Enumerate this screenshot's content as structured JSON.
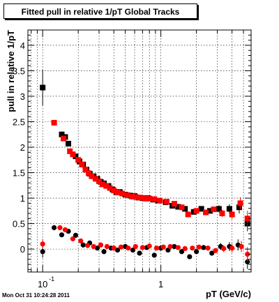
{
  "title": "Fitted pull in relative 1/pT  Global Tracks",
  "footer": "Mon Oct 31 10:24:28 2011",
  "chart_data": {
    "type": "scatter",
    "title": "Fitted pull in relative 1/pT  Global Tracks",
    "xlabel": "pT (GeV/c)",
    "ylabel": "pull in relative 1/pT",
    "xscale": "log",
    "xlim": [
      0.075,
      5.8
    ],
    "ylim": [
      -0.45,
      4.3
    ],
    "x_ticklabels": [
      "10",
      "1"
    ],
    "x_ticklabel_exponents": [
      "-1",
      ""
    ],
    "y_ticks": [
      0,
      0.5,
      1,
      1.5,
      2,
      2.5,
      3,
      3.5,
      4
    ],
    "y_ticklabels": [
      "0",
      "0.5",
      "1",
      "1.5",
      "2",
      "2.5",
      "3",
      "3.5",
      "4"
    ],
    "grid": true,
    "colors": {
      "black_series": "#000000",
      "red_series": "#ff0000"
    },
    "series": [
      {
        "marker": "square",
        "color": "#000000",
        "x": [
          0.1,
          0.145,
          0.155,
          0.165,
          0.19,
          0.205,
          0.22,
          0.235,
          0.25,
          0.27,
          0.29,
          0.31,
          0.33,
          0.36,
          0.39,
          0.42,
          0.45,
          0.5,
          0.55,
          0.6,
          0.65,
          0.7,
          0.78,
          0.86,
          0.95,
          1.1,
          1.25,
          1.4,
          1.6,
          1.9,
          2.2,
          2.6,
          3.1,
          3.8,
          4.6,
          5.4
        ],
        "y": [
          3.17,
          2.25,
          2.2,
          2.07,
          1.82,
          1.72,
          1.66,
          1.56,
          1.48,
          1.43,
          1.38,
          1.32,
          1.29,
          1.24,
          1.17,
          1.12,
          1.12,
          1.07,
          1.05,
          1.04,
          1.01,
          1.0,
          1.0,
          0.97,
          0.95,
          0.92,
          0.85,
          0.83,
          0.79,
          0.73,
          0.79,
          0.75,
          0.79,
          0.79,
          0.82,
          0.5
        ],
        "yerr": [
          0.35,
          0.06,
          0.04,
          0.04,
          0.03,
          0.03,
          0.03,
          0.03,
          0.03,
          0.03,
          0.03,
          0.03,
          0.03,
          0.03,
          0.03,
          0.03,
          0.03,
          0.03,
          0.03,
          0.03,
          0.03,
          0.03,
          0.03,
          0.03,
          0.03,
          0.03,
          0.03,
          0.03,
          0.04,
          0.04,
          0.05,
          0.05,
          0.07,
          0.09,
          0.12,
          0.15
        ]
      },
      {
        "marker": "square",
        "color": "#ff0000",
        "x": [
          0.125,
          0.15,
          0.17,
          0.18,
          0.2,
          0.215,
          0.23,
          0.245,
          0.26,
          0.28,
          0.3,
          0.32,
          0.345,
          0.37,
          0.4,
          0.43,
          0.47,
          0.52,
          0.57,
          0.62,
          0.67,
          0.73,
          0.8,
          0.88,
          0.98,
          1.12,
          1.3,
          1.5,
          1.7,
          2.0,
          2.4,
          2.8,
          3.3,
          4.0,
          4.7,
          5.4
        ],
        "y": [
          2.48,
          2.17,
          1.92,
          1.86,
          1.75,
          1.66,
          1.56,
          1.49,
          1.43,
          1.38,
          1.33,
          1.27,
          1.24,
          1.2,
          1.15,
          1.11,
          1.09,
          1.06,
          1.03,
          1.02,
          1.01,
          0.99,
          0.99,
          0.98,
          0.95,
          0.93,
          0.89,
          0.82,
          0.68,
          0.75,
          0.72,
          0.78,
          0.7,
          0.68,
          0.9,
          0.6
        ],
        "yerr": [
          0.05,
          0.04,
          0.04,
          0.03,
          0.03,
          0.03,
          0.03,
          0.03,
          0.03,
          0.03,
          0.03,
          0.03,
          0.03,
          0.03,
          0.03,
          0.03,
          0.03,
          0.03,
          0.03,
          0.03,
          0.03,
          0.03,
          0.03,
          0.03,
          0.03,
          0.03,
          0.03,
          0.03,
          0.04,
          0.04,
          0.05,
          0.05,
          0.07,
          0.09,
          0.12,
          0.15
        ]
      },
      {
        "marker": "circle",
        "color": "#000000",
        "x": [
          0.1,
          0.125,
          0.145,
          0.165,
          0.19,
          0.22,
          0.25,
          0.29,
          0.33,
          0.38,
          0.43,
          0.5,
          0.58,
          0.66,
          0.76,
          0.88,
          1.0,
          1.15,
          1.3,
          1.5,
          1.75,
          2.0,
          2.3,
          2.7,
          3.2,
          3.8,
          4.5,
          5.4
        ],
        "y": [
          -0.05,
          0.42,
          0.28,
          0.35,
          0.27,
          0.08,
          0.12,
          0.02,
          -0.05,
          0.02,
          -0.02,
          0.05,
          -0.02,
          -0.08,
          0.03,
          -0.12,
          0.02,
          -0.02,
          0.05,
          -0.05,
          -0.15,
          -0.05,
          0.03,
          -0.08,
          0.05,
          0.05,
          0.08,
          -0.25
        ],
        "yerr": [
          0.12,
          0.05,
          0.04,
          0.04,
          0.03,
          0.03,
          0.03,
          0.03,
          0.03,
          0.03,
          0.03,
          0.03,
          0.03,
          0.03,
          0.03,
          0.03,
          0.03,
          0.03,
          0.03,
          0.03,
          0.04,
          0.04,
          0.05,
          0.05,
          0.07,
          0.09,
          0.11,
          0.14
        ]
      },
      {
        "marker": "circle",
        "color": "#ff0000",
        "x": [
          0.1,
          0.14,
          0.155,
          0.18,
          0.21,
          0.24,
          0.27,
          0.31,
          0.35,
          0.4,
          0.46,
          0.53,
          0.61,
          0.7,
          0.8,
          0.92,
          1.05,
          1.2,
          1.4,
          1.6,
          1.85,
          2.1,
          2.5,
          2.9,
          3.4,
          4.0,
          4.8,
          5.4
        ],
        "y": [
          0.1,
          0.42,
          0.38,
          0.2,
          0.16,
          0.07,
          0.05,
          0.08,
          0.05,
          0.02,
          0.04,
          0.02,
          0.05,
          0.03,
          0.06,
          0.02,
          0.04,
          0.05,
          0.03,
          0.01,
          0.02,
          0.04,
          0.02,
          -0.03,
          0.01,
          0.02,
          0.05,
          -0.1
        ],
        "yerr": [
          0.1,
          0.05,
          0.04,
          0.04,
          0.03,
          0.03,
          0.03,
          0.03,
          0.03,
          0.03,
          0.03,
          0.03,
          0.03,
          0.03,
          0.03,
          0.03,
          0.03,
          0.03,
          0.03,
          0.03,
          0.04,
          0.04,
          0.05,
          0.05,
          0.07,
          0.09,
          0.11,
          0.14
        ]
      }
    ]
  }
}
